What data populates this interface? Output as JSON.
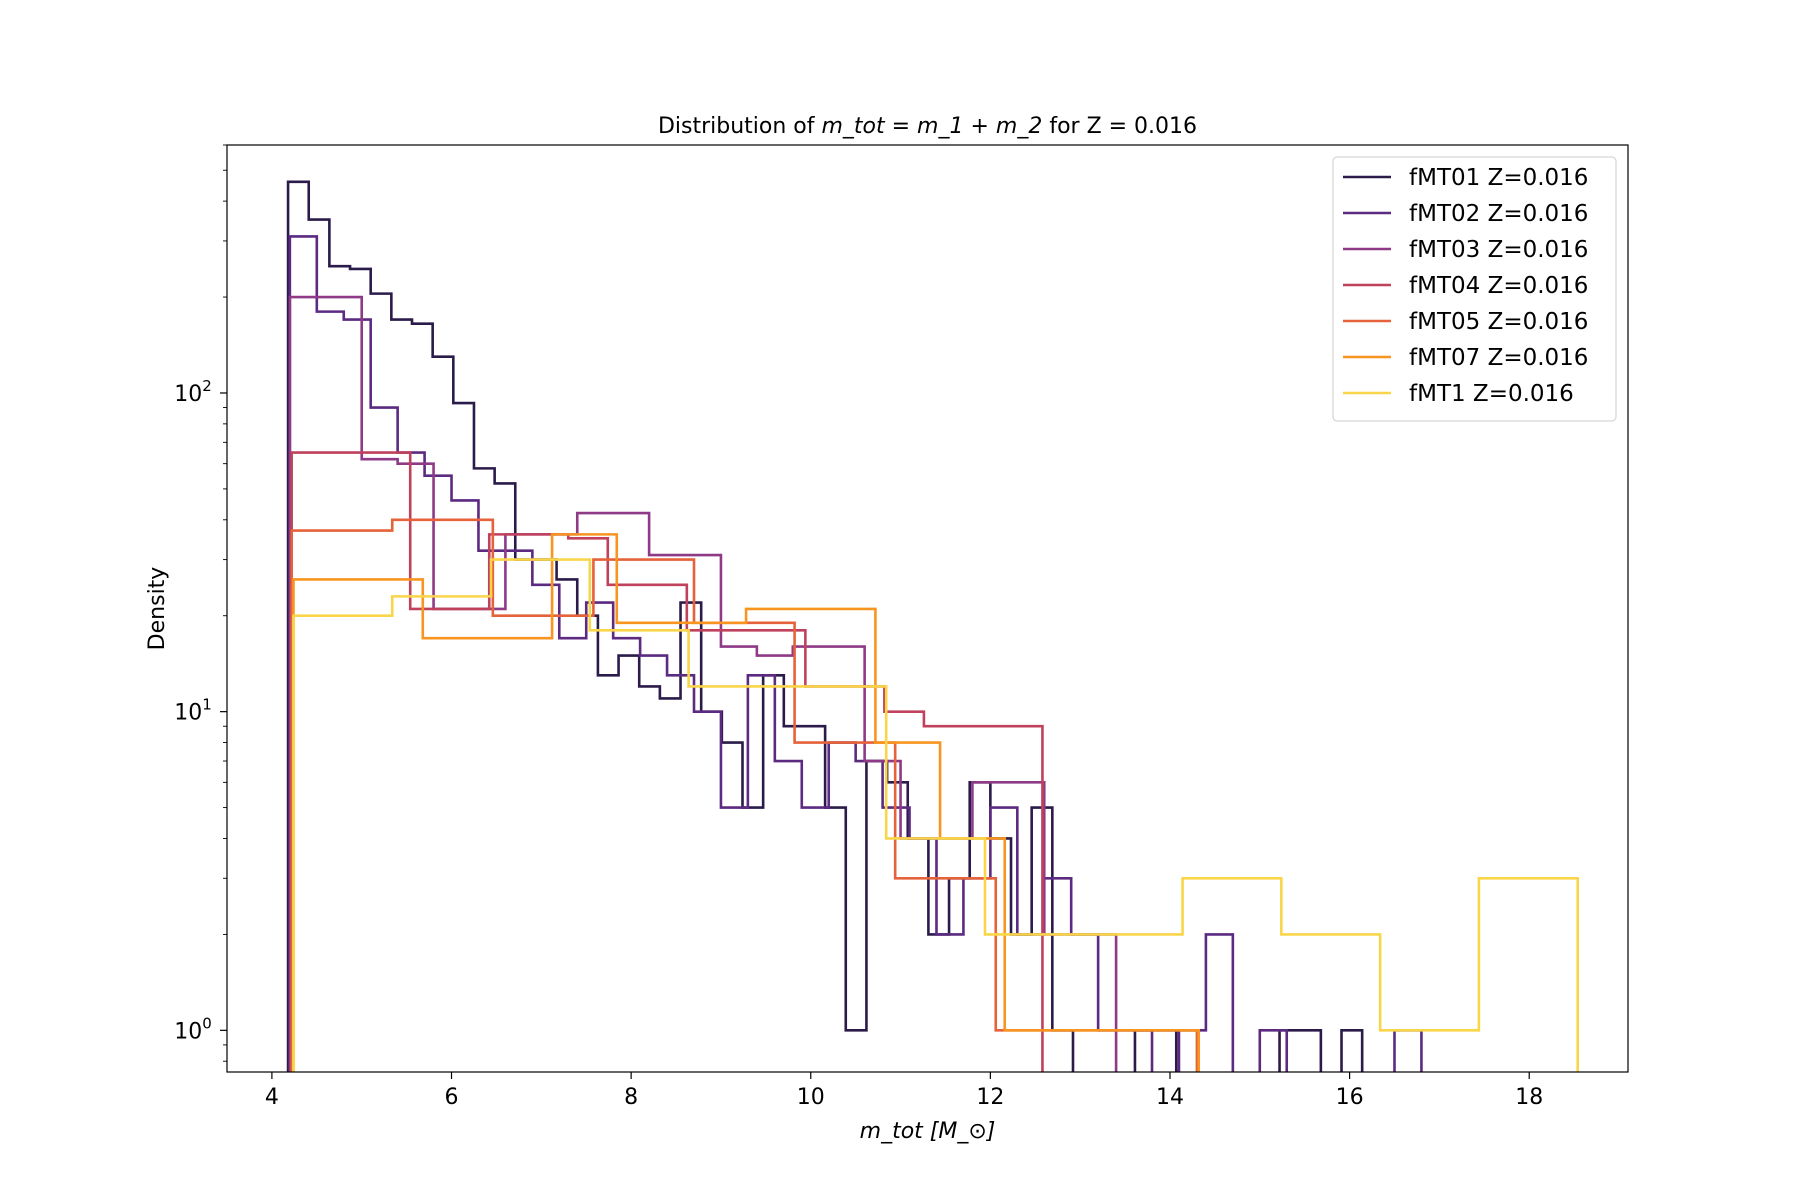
{
  "chart_data": {
    "type": "histogram",
    "title_prefix": "Distribution of ",
    "title_math": "m_tot = m_1 + m_2",
    "title_suffix": " for Z = 0.016",
    "xlabel_math": "m_tot [M_⊙]",
    "ylabel": "Density",
    "xscale": "linear",
    "yscale": "log",
    "xlim": [
      3.5,
      19.1
    ],
    "ylim": [
      0.74,
      600
    ],
    "xticks": [
      4,
      6,
      8,
      10,
      12,
      14,
      16,
      18
    ],
    "yticks": [
      1,
      10,
      100
    ],
    "grid": false,
    "legend_position": "upper right",
    "series": [
      {
        "name": "fMT01  Z=0.016",
        "color": "#2a1b4a",
        "edges": [
          4.18,
          4.41,
          4.64,
          4.87,
          5.1,
          5.33,
          5.56,
          5.79,
          6.02,
          6.25,
          6.48,
          6.71,
          6.94,
          7.17,
          7.4,
          7.63,
          7.86,
          8.09,
          8.32,
          8.55,
          8.78,
          9.01,
          9.24,
          9.47,
          9.7,
          9.93,
          10.16,
          10.39,
          10.62,
          10.85,
          11.08,
          11.31,
          11.54,
          11.77,
          12.0,
          12.23,
          12.46,
          12.69,
          12.92,
          13.15,
          13.38,
          13.61,
          13.84,
          14.07,
          14.3,
          14.53,
          14.76,
          14.99,
          15.22,
          15.45,
          15.68,
          15.91,
          16.14
        ],
        "values": [
          460,
          350,
          250,
          245,
          205,
          170,
          165,
          130,
          93,
          58,
          52,
          30,
          30,
          26,
          20,
          13,
          15,
          12,
          11,
          22,
          10,
          8,
          5,
          13,
          9,
          9,
          5,
          1,
          7,
          6,
          4,
          2,
          3,
          6,
          4,
          2,
          5,
          1,
          0,
          0,
          0,
          1,
          1,
          0,
          0,
          0,
          0,
          0,
          1,
          1,
          0,
          1,
          0
        ]
      },
      {
        "name": "fMT02  Z=0.016",
        "color": "#5c2a80",
        "edges": [
          4.2,
          4.5,
          4.8,
          5.1,
          5.4,
          5.7,
          6.0,
          6.3,
          6.6,
          6.9,
          7.2,
          7.5,
          7.8,
          8.1,
          8.4,
          8.7,
          9.0,
          9.3,
          9.6,
          9.9,
          10.2,
          10.5,
          10.8,
          11.1,
          11.4,
          11.7,
          12.0,
          12.3,
          12.6,
          12.9,
          13.2,
          13.5,
          13.8,
          14.1,
          14.4,
          14.7,
          15.0,
          15.3,
          15.6,
          15.9,
          16.2,
          16.5,
          16.8,
          17.1
        ],
        "values": [
          310,
          180,
          170,
          90,
          65,
          55,
          46,
          32,
          32,
          25,
          17,
          22,
          17,
          15,
          13,
          10,
          5,
          13,
          7,
          5,
          8,
          7,
          5,
          4,
          2,
          3,
          5,
          2,
          3,
          2,
          1,
          1,
          0,
          1,
          2,
          0,
          1,
          0,
          0,
          0,
          0,
          1,
          0
        ]
      },
      {
        "name": "fMT03  Z=0.016",
        "color": "#8e3a86",
        "edges": [
          4.2,
          4.6,
          5.0,
          5.4,
          5.8,
          6.2,
          6.6,
          7.0,
          7.4,
          7.8,
          8.2,
          8.6,
          9.0,
          9.4,
          9.8,
          10.2,
          10.6,
          11.0,
          11.4,
          11.8,
          12.2,
          12.6,
          13.0,
          13.4
        ],
        "values": [
          200,
          200,
          62,
          60,
          21,
          21,
          36,
          36,
          42,
          42,
          31,
          31,
          16,
          15,
          16,
          16,
          7,
          4,
          4,
          6,
          6,
          2,
          2
        ]
      },
      {
        "name": "fMT04  Z=0.016",
        "color": "#c0415c",
        "edges": [
          4.22,
          4.66,
          5.1,
          5.54,
          5.98,
          6.42,
          6.86,
          7.3,
          7.74,
          8.18,
          8.62,
          9.06,
          9.5,
          9.94,
          10.38,
          10.82,
          11.26,
          11.7,
          12.14,
          12.58
        ],
        "values": [
          65,
          65,
          65,
          21,
          21,
          36,
          36,
          35,
          25,
          25,
          18,
          18,
          18,
          12,
          12,
          10,
          9,
          9,
          9
        ]
      },
      {
        "name": "fMT05  Z=0.016",
        "color": "#e5623a",
        "edges": [
          4.22,
          4.78,
          5.34,
          5.9,
          6.46,
          7.02,
          7.58,
          8.14,
          8.7,
          9.26,
          9.82,
          10.38,
          10.94,
          11.5,
          12.06,
          12.62,
          13.18,
          13.74,
          14.3
        ],
        "values": [
          37,
          37,
          40,
          40,
          20,
          20,
          30,
          30,
          19,
          19,
          8,
          8,
          3,
          3,
          1,
          1,
          1,
          1
        ]
      },
      {
        "name": "fMT07  Z=0.016",
        "color": "#f79520",
        "edges": [
          4.24,
          4.96,
          5.68,
          6.4,
          7.12,
          7.84,
          8.56,
          9.28,
          10.0,
          10.72,
          11.44,
          12.16,
          12.88,
          13.6,
          14.32
        ],
        "values": [
          26,
          26,
          17,
          17,
          36,
          19,
          19,
          21,
          21,
          8,
          4,
          1,
          1,
          1
        ]
      },
      {
        "name": "fMT1  Z=0.016",
        "color": "#f9d549",
        "edges": [
          4.24,
          5.34,
          6.44,
          7.54,
          8.64,
          9.74,
          10.84,
          11.94,
          13.04,
          14.14,
          15.24,
          16.34,
          17.44,
          18.54
        ],
        "values": [
          20,
          23,
          30,
          18,
          12,
          12,
          4,
          2,
          2,
          3,
          2,
          1,
          3
        ]
      }
    ]
  }
}
